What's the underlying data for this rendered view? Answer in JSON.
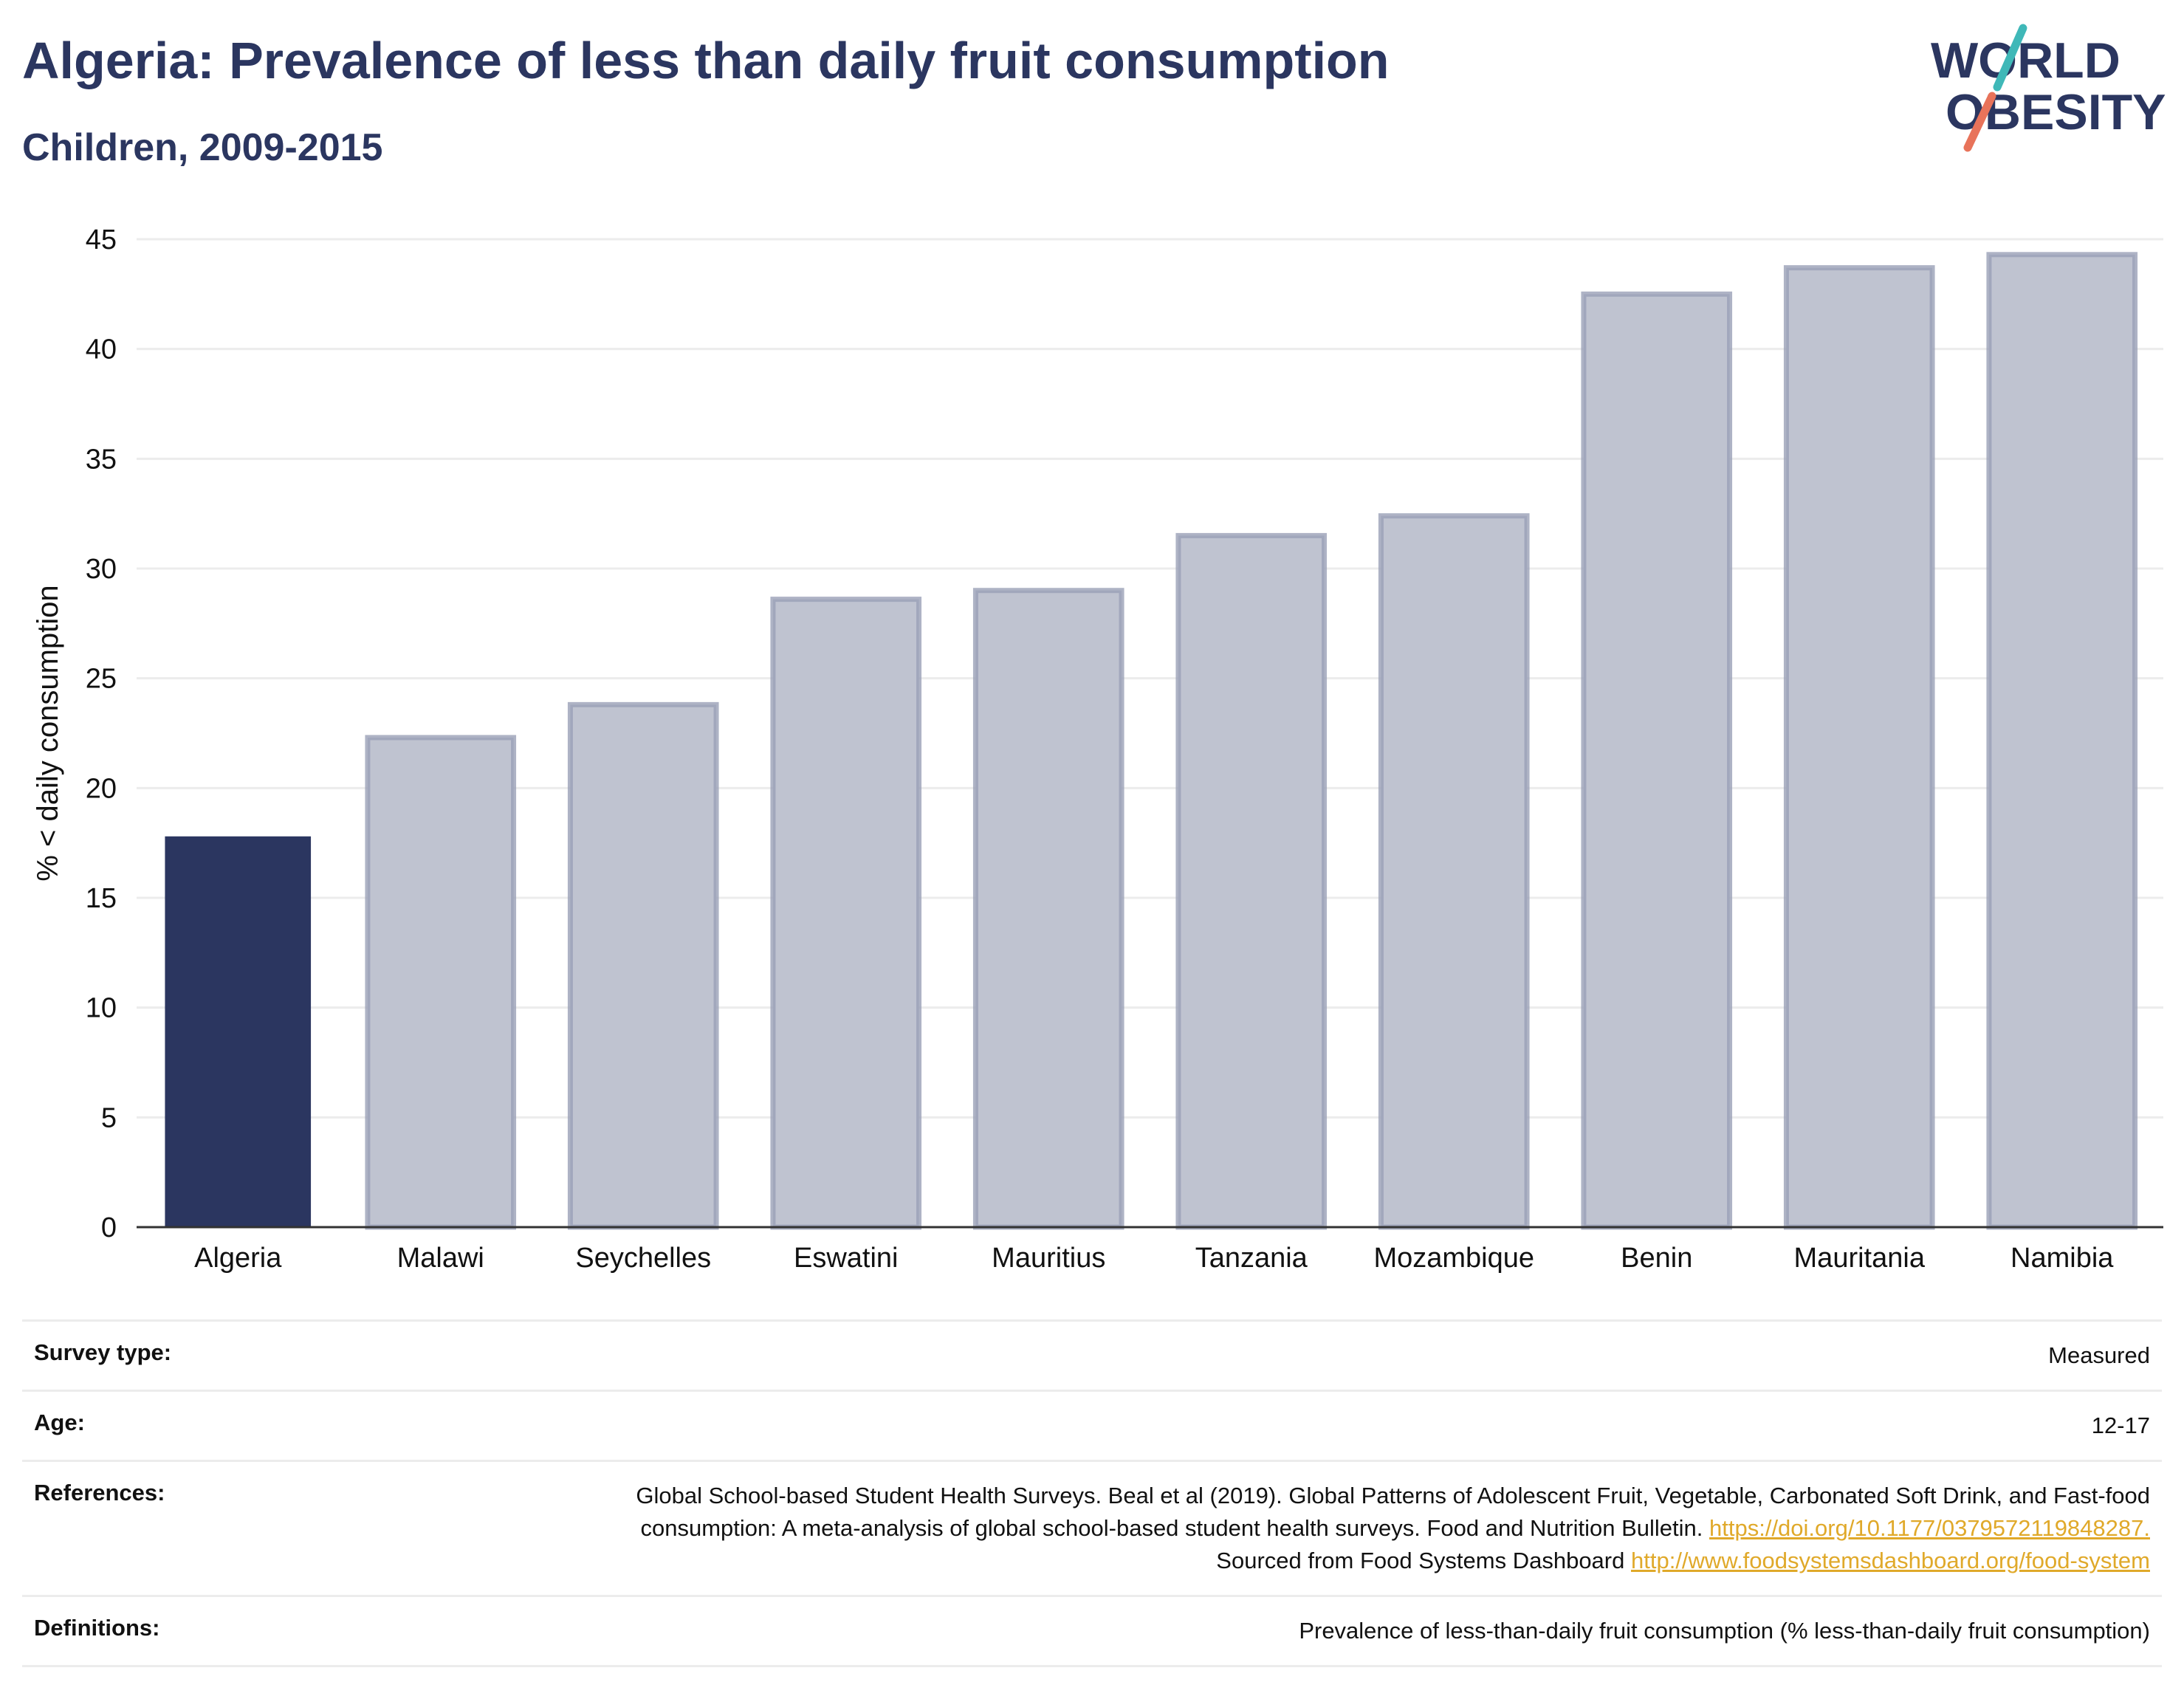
{
  "header": {
    "title": "Algeria: Prevalence of less than daily fruit consumption",
    "subtitle": "Children, 2009-2015"
  },
  "logo": {
    "line1": "WORLD",
    "line2": "OBESITY",
    "icon": "world-obesity-logo-icon"
  },
  "colors": {
    "highlight": "#2b3660",
    "bar_fill": "#bfc3d0",
    "bar_stroke": "#9aa0b6",
    "grid": "#ececec",
    "link": "#e0a92a",
    "logo_teal": "#3fb8b8",
    "logo_coral": "#e8735a"
  },
  "chart_data": {
    "type": "bar",
    "title": "Algeria: Prevalence of less than daily fruit consumption",
    "subtitle": "Children, 2009-2015",
    "xlabel": "",
    "ylabel": "% < daily consumption",
    "categories": [
      "Algeria",
      "Malawi",
      "Seychelles",
      "Eswatini",
      "Mauritius",
      "Tanzania",
      "Mozambique",
      "Benin",
      "Mauritania",
      "Namibia"
    ],
    "values": [
      17.8,
      22.3,
      23.8,
      28.6,
      29.0,
      31.5,
      32.4,
      42.5,
      43.7,
      44.3
    ],
    "highlight": "Algeria",
    "ylim": [
      0,
      45
    ],
    "yticks": [
      0,
      5,
      10,
      15,
      20,
      25,
      30,
      35,
      40,
      45
    ],
    "grid": true
  },
  "info": {
    "survey_type": {
      "label": "Survey type:",
      "value": "Measured"
    },
    "age": {
      "label": "Age:",
      "value": "12-17"
    },
    "references": {
      "label": "References:",
      "text1": "Global School-based Student Health Surveys. Beal et al (2019). Global Patterns of Adolescent Fruit, Vegetable, Carbonated Soft Drink, and Fast-food consumption: A meta-analysis of global school-based student health surveys. Food and Nutrition Bulletin.",
      "link1": "https://doi.org/10.1177/0379572119848287.",
      "text2": "Sourced from Food Systems Dashboard",
      "link2": "http://www.foodsystemsdashboard.org/food-system"
    },
    "definitions": {
      "label": "Definitions:",
      "value": "Prevalence of less-than-daily fruit consumption (% less-than-daily fruit consumption)"
    }
  }
}
